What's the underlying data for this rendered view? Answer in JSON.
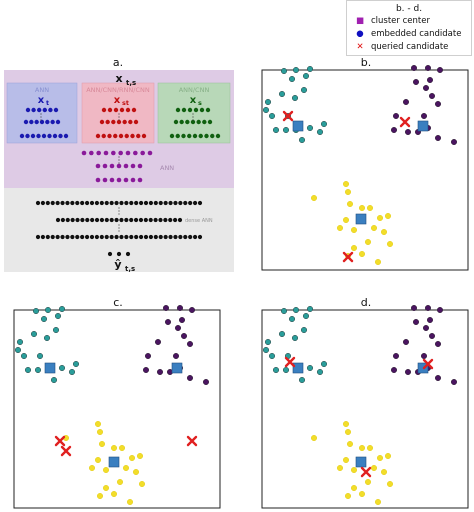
{
  "legend": {
    "title": "b. - d.",
    "items": [
      {
        "label": "cluster center",
        "symbol": "square",
        "color": "#a020b0"
      },
      {
        "label": "embedded candidate",
        "symbol": "dot",
        "color": "#1010c0"
      },
      {
        "label": "queried candidate",
        "symbol": "cross",
        "color": "#e01010"
      }
    ]
  },
  "colors": {
    "teal": "#2a9d9a",
    "purple": "#4a1560",
    "yellow": "#f2dd2a",
    "center": "#3a7fc0",
    "query": "#e02020",
    "blue_block": "#b8bde8",
    "red_block": "#f0b8c4",
    "green_block": "#b8d8b8",
    "arch_bg": "#e8e8e8",
    "purple_band": "#dcc6e4"
  },
  "panel_a": {
    "label": "a.",
    "top_output": "x",
    "top_output_sub": "t,s",
    "bottom_output": "ŷ",
    "bottom_output_sub": "t,s",
    "branch_t": {
      "name": "ANN",
      "var": "x",
      "sub": "t"
    },
    "branch_st": {
      "name": "ANN/CNN/RNN/CNN",
      "var": "x",
      "sub": "st"
    },
    "branch_s": {
      "name": "ANN/CNN",
      "var": "x",
      "sub": "s"
    },
    "merge_name": "ANN",
    "regress_name": "dense ANN"
  },
  "panel_b": {
    "label": "b."
  },
  "panel_c": {
    "label": "c."
  },
  "panel_d": {
    "label": "d."
  }
}
